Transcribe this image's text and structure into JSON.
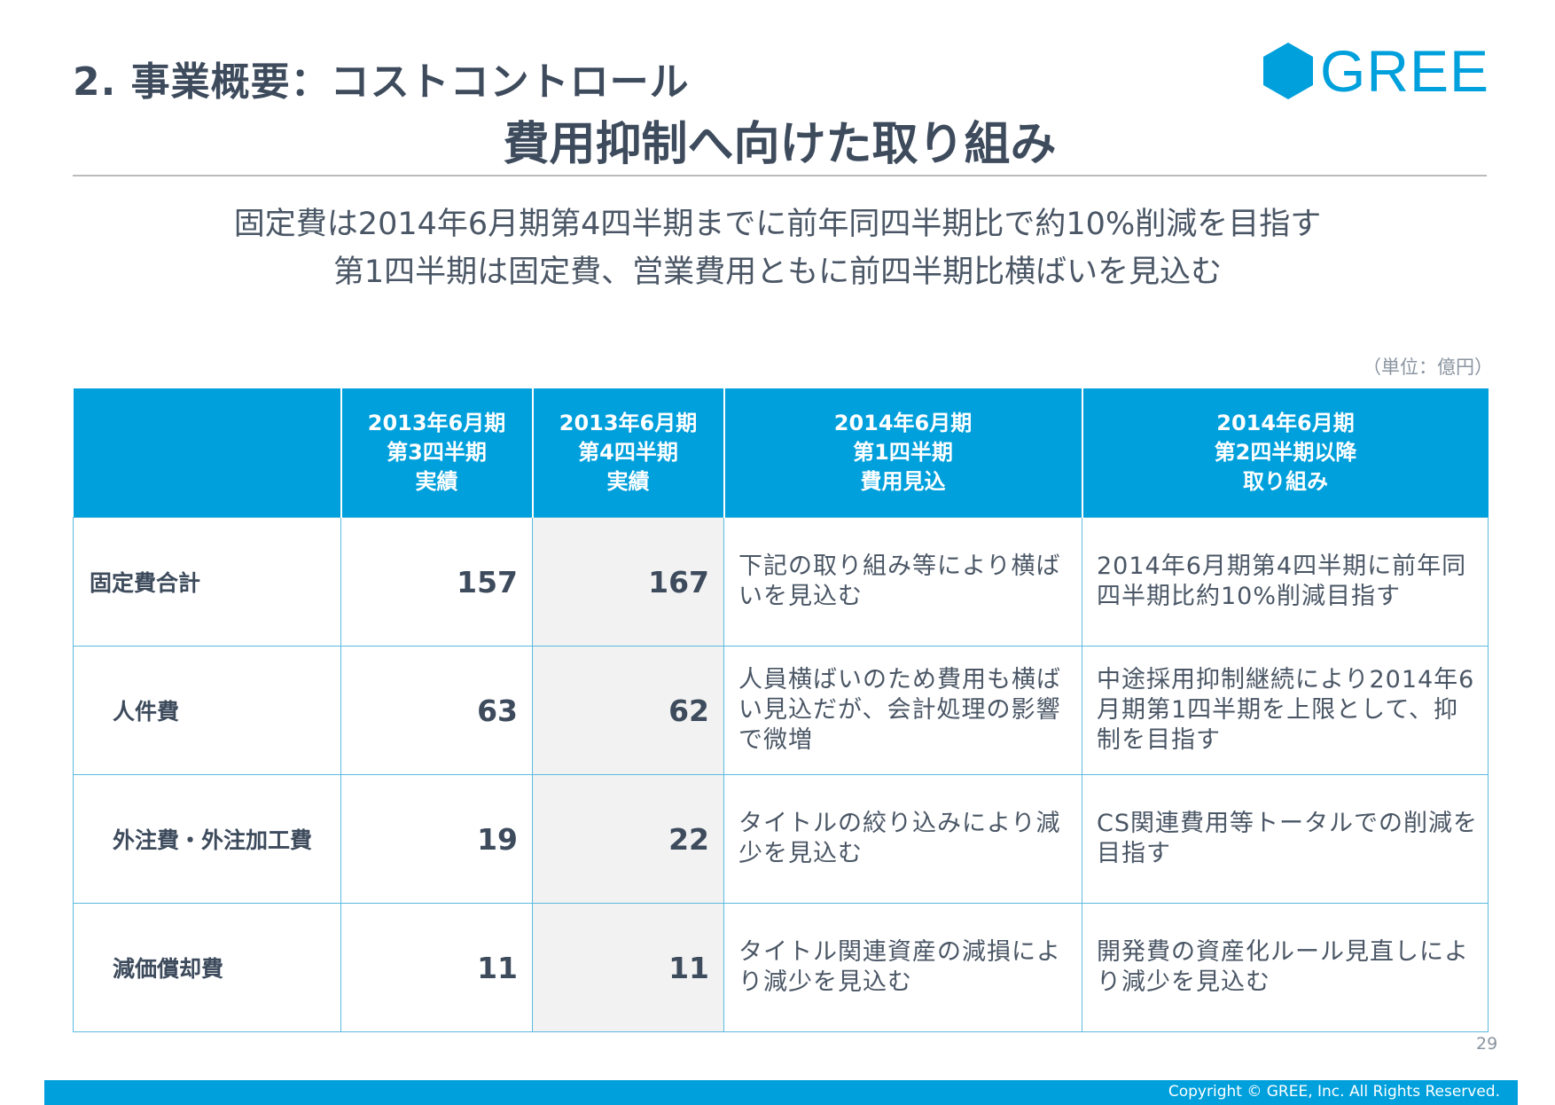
{
  "header": {
    "section_title": "2. 事業概要：コストコントロール",
    "main_title": "費用抑制へ向けた取り組み",
    "logo_text": "GREE"
  },
  "lead": {
    "line1": "固定費は2014年6月期第4四半期までに前年同四半期比で約10%削減を目指す",
    "line2": "第1四半期は固定費、営業費用ともに前四半期比横ばいを見込む"
  },
  "unit_label": "（単位：億円）",
  "table": {
    "headers": [
      {
        "l1": "",
        "l2": "",
        "l3": ""
      },
      {
        "l1": "2013年6月期",
        "l2": "第3四半期",
        "l3": "実績"
      },
      {
        "l1": "2013年6月期",
        "l2": "第4四半期",
        "l3": "実績"
      },
      {
        "l1": "2014年6月期",
        "l2": "第1四半期",
        "l3": "費用見込"
      },
      {
        "l1": "2014年6月期",
        "l2": "第2四半期以降",
        "l3": "取り組み"
      }
    ],
    "rows": [
      {
        "label": "固定費合計",
        "q3": "157",
        "q4": "167",
        "outlook": "下記の取り組み等により横ばいを見込む",
        "initiative": "2014年6月期第4四半期に前年同四半期比約10%削減目指す"
      },
      {
        "label": "人件費",
        "q3": "63",
        "q4": "62",
        "outlook": "人員横ばいのため費用も横ばい見込だが、会計処理の影響で微増",
        "initiative": "中途採用抑制継続により2014年6月期第1四半期を上限として、抑制を目指す"
      },
      {
        "label": "外注費・外注加工費",
        "q3": "19",
        "q4": "22",
        "outlook": "タイトルの絞り込みにより減少を見込む",
        "initiative": "CS関連費用等トータルでの削減を目指す"
      },
      {
        "label": "減価償却費",
        "q3": "11",
        "q4": "11",
        "outlook": "タイトル関連資産の減損により減少を見込む",
        "initiative": "開発費の資産化ルール見直しにより減少を見込む"
      }
    ]
  },
  "page_number": "29",
  "footer": {
    "copyright": "Copyright © GREE, Inc. All Rights Reserved."
  },
  "colors": {
    "brand": "#00a0dc",
    "text": "#3d4b5c",
    "highlight_column": "#f2f2f2"
  }
}
